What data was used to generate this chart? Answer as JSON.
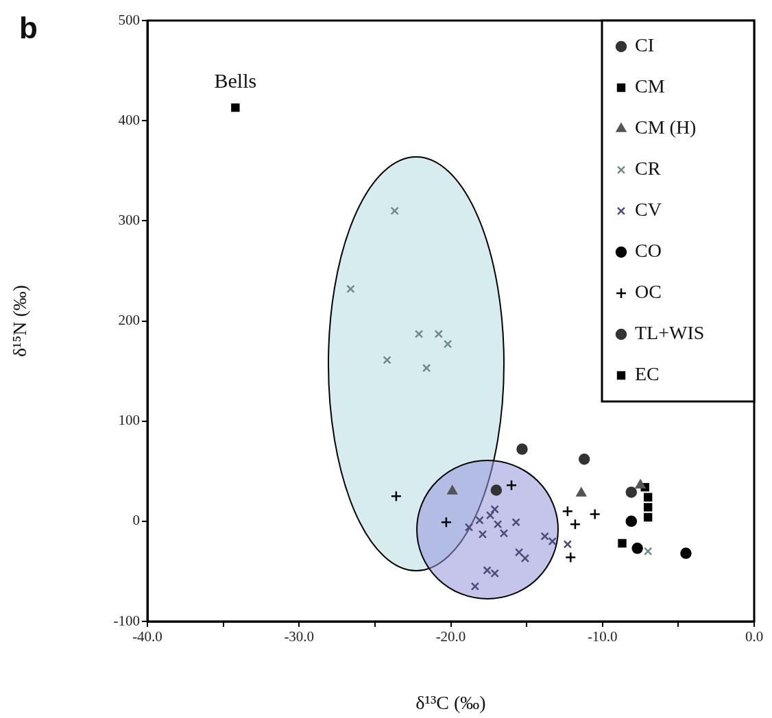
{
  "chart_data": {
    "type": "scatter",
    "title": "b",
    "xlabel": "δ¹³C (‰)",
    "ylabel": "δ¹⁵N (‰)",
    "xlim": [
      -40,
      0
    ],
    "ylim": [
      -100,
      500
    ],
    "xticks": [
      {
        "value": -40,
        "label": "-40.0"
      },
      {
        "value": -35,
        "label": null
      },
      {
        "value": -30,
        "label": "-30.0"
      },
      {
        "value": -25,
        "label": null
      },
      {
        "value": -20,
        "label": "-20.0"
      },
      {
        "value": -15,
        "label": null
      },
      {
        "value": -10,
        "label": "-10.0"
      },
      {
        "value": -5,
        "label": null
      },
      {
        "value": 0,
        "label": "0.0"
      }
    ],
    "yticks": [
      -100,
      0,
      100,
      200,
      300,
      400,
      500
    ],
    "grid": false,
    "legend": "top right",
    "annotations": [
      {
        "text": "Bells",
        "x": -34.2,
        "y": 413
      }
    ],
    "series": [
      {
        "name": "CI",
        "color": "#333333",
        "marker": "circle",
        "x": [
          -15.3,
          -17.0
        ],
        "values": [
          72,
          31
        ]
      },
      {
        "name": "CM",
        "color": "#000000",
        "marker": "square",
        "x": [
          -34.2
        ],
        "values": [
          413
        ]
      },
      {
        "name": "CM (H)",
        "color": "#555555",
        "marker": "triangle",
        "x": [
          -19.9,
          -11.4,
          -7.5
        ],
        "values": [
          30,
          28,
          36
        ]
      },
      {
        "name": "CR",
        "color": "#6f8a8c",
        "marker": "x",
        "x": [
          -23.7,
          -26.6,
          -22.1,
          -20.8,
          -20.2,
          -21.6,
          -24.2,
          -7.0
        ],
        "values": [
          310,
          232,
          187,
          187,
          177,
          153,
          161,
          -30
        ]
      },
      {
        "name": "CV",
        "color": "#4b4b7a",
        "marker": "x",
        "x": [
          -18.8,
          -18.1,
          -17.4,
          -16.9,
          -16.5,
          -17.9,
          -17.1,
          -15.7,
          -15.5,
          -15.1,
          -13.3,
          -13.8,
          -17.6,
          -17.1,
          -18.4,
          -12.3
        ],
        "values": [
          -6,
          1,
          6,
          -3,
          -12,
          -13,
          12,
          -1,
          -31,
          -37,
          -20,
          -15,
          -49,
          -52,
          -65,
          -23
        ]
      },
      {
        "name": "CO",
        "color": "#000000",
        "marker": "circle",
        "x": [
          -4.5,
          -7.7,
          -8.1
        ],
        "values": [
          -32,
          -27,
          0
        ]
      },
      {
        "name": "OC",
        "color": "#000000",
        "marker": "cross",
        "x": [
          -23.6,
          -20.3,
          -16.0,
          -12.3,
          -11.8,
          -10.5,
          -12.1
        ],
        "values": [
          25,
          -1,
          36,
          10,
          -3,
          7,
          -36
        ]
      },
      {
        "name": "TL+WIS",
        "color": "#333333",
        "marker": "circle",
        "x": [
          -11.2,
          -8.1
        ],
        "values": [
          62,
          29
        ]
      },
      {
        "name": "EC",
        "color": "#000000",
        "marker": "square",
        "x": [
          -8.7,
          -7.2,
          -7.0,
          -7.0,
          -7.0
        ],
        "values": [
          -22,
          34,
          24,
          14,
          4
        ]
      }
    ]
  }
}
